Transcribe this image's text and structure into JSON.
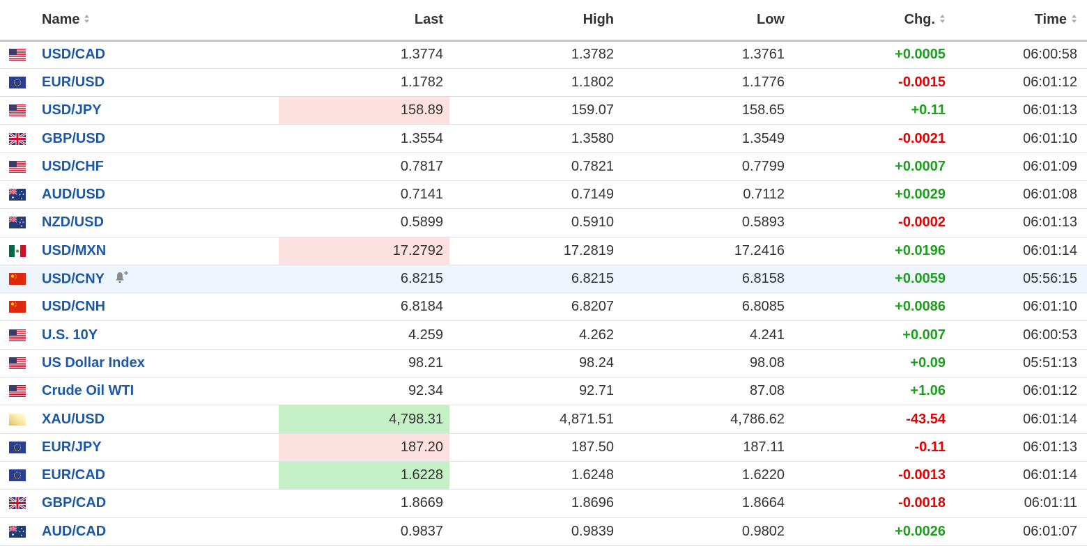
{
  "header": {
    "name": "Name",
    "last": "Last",
    "high": "High",
    "low": "Low",
    "chg": "Chg.",
    "time": "Time"
  },
  "rows": [
    {
      "flag": "us-flag-icon",
      "name": "USD/CAD",
      "last": "1.3774",
      "high": "1.3782",
      "low": "1.3761",
      "chg": "+0.0005",
      "time": "06:00:58"
    },
    {
      "flag": "eu-flag-icon",
      "name": "EUR/USD",
      "last": "1.1782",
      "high": "1.1802",
      "low": "1.1776",
      "chg": "-0.0015",
      "time": "06:01:12"
    },
    {
      "flag": "us-flag-icon",
      "name": "USD/JPY",
      "last": "158.89",
      "high": "159.07",
      "low": "158.65",
      "chg": "+0.11",
      "time": "06:01:13"
    },
    {
      "flag": "uk-flag-icon",
      "name": "GBP/USD",
      "last": "1.3554",
      "high": "1.3580",
      "low": "1.3549",
      "chg": "-0.0021",
      "time": "06:01:10"
    },
    {
      "flag": "us-flag-icon",
      "name": "USD/CHF",
      "last": "0.7817",
      "high": "0.7821",
      "low": "0.7799",
      "chg": "+0.0007",
      "time": "06:01:09"
    },
    {
      "flag": "au-flag-icon",
      "name": "AUD/USD",
      "last": "0.7141",
      "high": "0.7149",
      "low": "0.7112",
      "chg": "+0.0029",
      "time": "06:01:08"
    },
    {
      "flag": "nz-flag-icon",
      "name": "NZD/USD",
      "last": "0.5899",
      "high": "0.5910",
      "low": "0.5893",
      "chg": "-0.0002",
      "time": "06:01:13"
    },
    {
      "flag": "mx-flag-icon",
      "name": "USD/MXN",
      "last": "17.2792",
      "high": "17.2819",
      "low": "17.2416",
      "chg": "+0.0196",
      "time": "06:01:14"
    },
    {
      "flag": "cn-flag-icon",
      "name": "USD/CNY",
      "last": "6.8215",
      "high": "6.8215",
      "low": "6.8158",
      "chg": "+0.0059",
      "time": "05:56:15"
    },
    {
      "flag": "cn-flag-icon",
      "name": "USD/CNH",
      "last": "6.8184",
      "high": "6.8207",
      "low": "6.8085",
      "chg": "+0.0086",
      "time": "06:01:10"
    },
    {
      "flag": "us-flag-icon",
      "name": "U.S. 10Y",
      "last": "4.259",
      "high": "4.262",
      "low": "4.241",
      "chg": "+0.007",
      "time": "06:00:53"
    },
    {
      "flag": "us-flag-icon",
      "name": "US Dollar Index",
      "last": "98.21",
      "high": "98.24",
      "low": "98.08",
      "chg": "+0.09",
      "time": "05:51:13"
    },
    {
      "flag": "us-flag-icon",
      "name": "Crude Oil WTI",
      "last": "92.34",
      "high": "92.71",
      "low": "87.08",
      "chg": "+1.06",
      "time": "06:01:12"
    },
    {
      "flag": "gold-icon",
      "name": "XAU/USD",
      "last": "4,798.31",
      "high": "4,871.51",
      "low": "4,786.62",
      "chg": "-43.54",
      "time": "06:01:14"
    },
    {
      "flag": "eu-flag-icon",
      "name": "EUR/JPY",
      "last": "187.20",
      "high": "187.50",
      "low": "187.11",
      "chg": "-0.11",
      "time": "06:01:13"
    },
    {
      "flag": "eu-flag-icon",
      "name": "EUR/CAD",
      "last": "1.6228",
      "high": "1.6248",
      "low": "1.6220",
      "chg": "-0.0013",
      "time": "06:01:14"
    },
    {
      "flag": "uk-flag-icon",
      "name": "GBP/CAD",
      "last": "1.8669",
      "high": "1.8696",
      "low": "1.8664",
      "chg": "-0.0018",
      "time": "06:01:11"
    },
    {
      "flag": "au-flag-icon",
      "name": "AUD/CAD",
      "last": "0.9837",
      "high": "0.9839",
      "low": "0.9802",
      "chg": "+0.0026",
      "time": "06:01:07"
    }
  ],
  "colors": {
    "up": "#1da01d",
    "down": "#e60000",
    "link": "#1c58a6",
    "flash_up": "#c5f0c5",
    "flash_down": "#fde0e0",
    "hover_row": "#edf4fb"
  }
}
